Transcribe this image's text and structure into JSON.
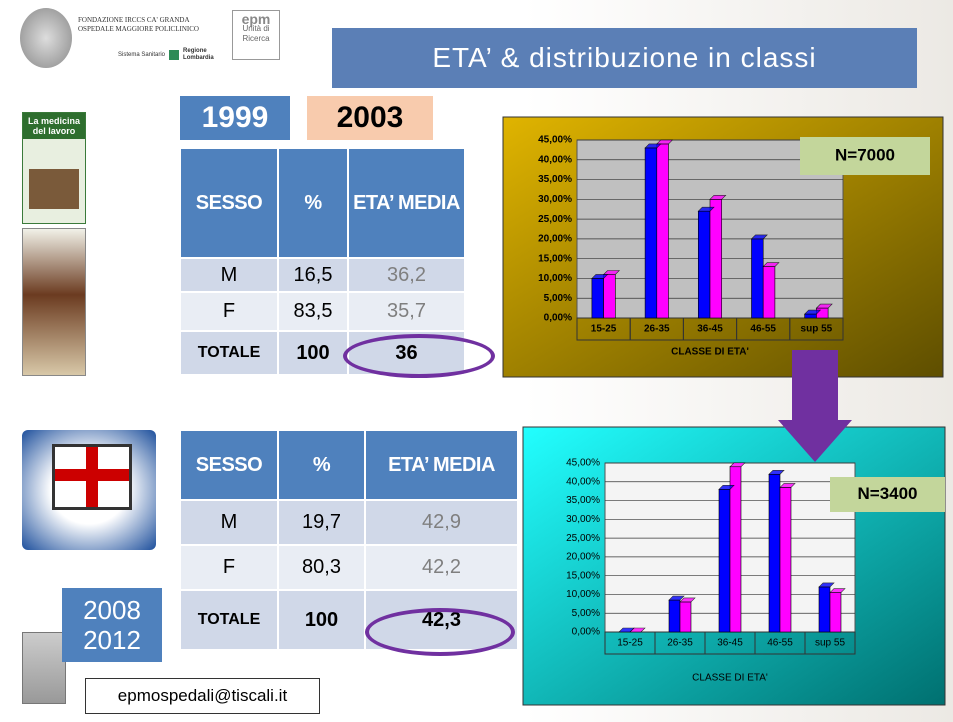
{
  "header": {
    "title": "ETA’  & distribuzione in classi",
    "logo_lines": [
      "FONDAZIONE IRCCS CA' GRANDA",
      "OSPEDALE MAGGIORE POLICLINICO"
    ],
    "regione": [
      "Sistema Sanitario",
      "Regione",
      "Lombardia"
    ],
    "epm": [
      "epm",
      "Unità di",
      "Ricerca"
    ]
  },
  "journal": {
    "title": "La medicina del lavoro"
  },
  "years_1": [
    "1999",
    "2003"
  ],
  "tables": [
    {
      "header": [
        "SESSO",
        "%",
        "ETA’ MEDIA"
      ],
      "rows": [
        [
          "M",
          "16,5",
          "36,2"
        ],
        [
          "F",
          "83,5",
          "35,7"
        ],
        [
          "TOTALE",
          "100",
          "36"
        ]
      ]
    },
    {
      "header": [
        "SESSO",
        "%",
        "ETA’ MEDIA"
      ],
      "rows": [
        [
          "M",
          "19,7",
          "42,9"
        ],
        [
          "F",
          "80,3",
          "42,2"
        ],
        [
          "TOTALE",
          "100",
          "42,3"
        ]
      ]
    }
  ],
  "years_2": [
    "2008",
    "2012"
  ],
  "email": "epmospedali@tiscali.it",
  "chart_data": [
    {
      "type": "bar",
      "categories": [
        "15-25",
        "26-35",
        "36-45",
        "46-55",
        "sup 55"
      ],
      "series": [
        {
          "color": "#0000ff",
          "values": [
            10,
            43,
            27,
            20,
            1
          ]
        },
        {
          "color": "#ff00ff",
          "values": [
            11,
            44,
            30,
            13,
            2.5
          ]
        }
      ],
      "ylim": [
        0,
        45
      ],
      "yticks": [
        {
          "value": 0,
          "label": "0,00%"
        },
        {
          "value": 5,
          "label": "5,00%"
        },
        {
          "value": 10,
          "label": "10,00%"
        },
        {
          "value": 15,
          "label": "15,00%"
        },
        {
          "value": 20,
          "label": "20,00%"
        },
        {
          "value": 25,
          "label": "25,00%"
        },
        {
          "value": 30,
          "label": "30,00%"
        },
        {
          "value": 35,
          "label": "35,00%"
        },
        {
          "value": 40,
          "label": "40,00%"
        },
        {
          "value": 45,
          "label": "45,00%"
        }
      ],
      "xlabel": "CLASSE DI ETA'",
      "annotation": "N=7000",
      "grid": true
    },
    {
      "type": "bar",
      "categories": [
        "15-25",
        "26-35",
        "36-45",
        "46-55",
        "sup 55"
      ],
      "series": [
        {
          "color": "#0000ff",
          "values": [
            0,
            8.5,
            38,
            42,
            12
          ]
        },
        {
          "color": "#ff00ff",
          "values": [
            0,
            8,
            44,
            38.5,
            10.5
          ]
        }
      ],
      "ylim": [
        0,
        45
      ],
      "yticks": [
        {
          "value": 0,
          "label": "0,00%"
        },
        {
          "value": 5,
          "label": "5,00%"
        },
        {
          "value": 10,
          "label": "10,00%"
        },
        {
          "value": 15,
          "label": "15,00%"
        },
        {
          "value": 20,
          "label": "20,00%"
        },
        {
          "value": 25,
          "label": "25,00%"
        },
        {
          "value": 30,
          "label": "30,00%"
        },
        {
          "value": 35,
          "label": "35,00%"
        },
        {
          "value": 40,
          "label": "40,00%"
        },
        {
          "value": 45,
          "label": "45,00%"
        }
      ],
      "xlabel": "CLASSE DI ETA'",
      "annotation": "N=3400",
      "grid": true
    }
  ]
}
